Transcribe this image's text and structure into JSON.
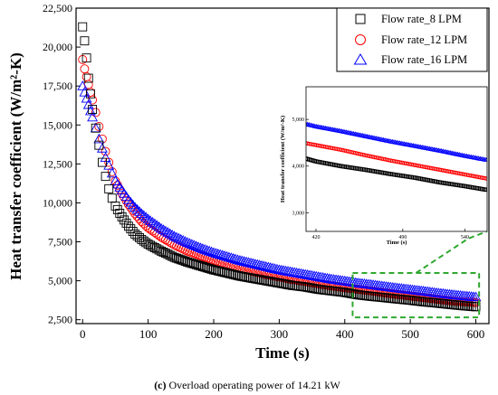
{
  "caption": {
    "letter": "(c)",
    "text": "Overload operating power of 14.21 kW"
  },
  "chart_data": {
    "type": "scatter",
    "xlabel": "Time (s)",
    "ylabel": "Heat transfer coefficient (W/m²-K)",
    "xlim": [
      -10,
      620
    ],
    "ylim": [
      2250,
      22500
    ],
    "xticks": [
      {
        "value": 0,
        "label": "0"
      },
      {
        "value": 100,
        "label": "100"
      },
      {
        "value": 200,
        "label": "200"
      },
      {
        "value": 300,
        "label": "300"
      },
      {
        "value": 400,
        "label": "400"
      },
      {
        "value": 500,
        "label": "500"
      },
      {
        "value": 600,
        "label": "600"
      }
    ],
    "yticks": [
      {
        "value": 2500,
        "label": "2,500"
      },
      {
        "value": 5000,
        "label": "5,000"
      },
      {
        "value": 7500,
        "label": "7,500"
      },
      {
        "value": 10000,
        "label": "10,000"
      },
      {
        "value": 12500,
        "label": "12,500"
      },
      {
        "value": 15000,
        "label": "15,000"
      },
      {
        "value": 17500,
        "label": "17,500"
      },
      {
        "value": 20000,
        "label": "20,000"
      },
      {
        "value": 22500,
        "label": "22,500"
      }
    ],
    "legend_position": "top-right",
    "series": [
      {
        "name": "Flow rate_8 LPM",
        "marker": "square",
        "color": "#000000",
        "points": [
          [
            0,
            21300
          ],
          [
            3,
            20400
          ],
          [
            6,
            19300
          ],
          [
            9,
            18000
          ],
          [
            12,
            17000
          ],
          [
            15,
            16000
          ],
          [
            20,
            14800
          ],
          [
            25,
            13700
          ],
          [
            30,
            12600
          ],
          [
            35,
            11700
          ],
          [
            40,
            10900
          ],
          [
            45,
            10300
          ],
          [
            50,
            9800
          ],
          [
            60,
            9100
          ],
          [
            70,
            8500
          ],
          [
            80,
            8000
          ],
          [
            90,
            7650
          ],
          [
            100,
            7350
          ],
          [
            120,
            6900
          ],
          [
            140,
            6500
          ],
          [
            160,
            6200
          ],
          [
            180,
            5950
          ],
          [
            200,
            5700
          ],
          [
            220,
            5500
          ],
          [
            240,
            5300
          ],
          [
            260,
            5150
          ],
          [
            280,
            5000
          ],
          [
            300,
            4850
          ],
          [
            320,
            4700
          ],
          [
            340,
            4600
          ],
          [
            360,
            4450
          ],
          [
            380,
            4350
          ],
          [
            400,
            4250
          ],
          [
            420,
            4100
          ],
          [
            440,
            4000
          ],
          [
            460,
            3920
          ],
          [
            480,
            3830
          ],
          [
            500,
            3750
          ],
          [
            520,
            3650
          ],
          [
            540,
            3570
          ],
          [
            560,
            3480
          ],
          [
            580,
            3400
          ],
          [
            600,
            3330
          ]
        ]
      },
      {
        "name": "Flow rate_12 LPM",
        "marker": "circle",
        "color": "#ff0000",
        "points": [
          [
            0,
            19200
          ],
          [
            3,
            18600
          ],
          [
            6,
            18100
          ],
          [
            9,
            17600
          ],
          [
            12,
            17100
          ],
          [
            15,
            16600
          ],
          [
            20,
            15800
          ],
          [
            25,
            14900
          ],
          [
            30,
            14100
          ],
          [
            35,
            13300
          ],
          [
            40,
            12600
          ],
          [
            45,
            12000
          ],
          [
            50,
            11400
          ],
          [
            60,
            10600
          ],
          [
            70,
            9900
          ],
          [
            80,
            9300
          ],
          [
            90,
            8800
          ],
          [
            100,
            8400
          ],
          [
            120,
            7800
          ],
          [
            140,
            7300
          ],
          [
            160,
            6900
          ],
          [
            180,
            6600
          ],
          [
            200,
            6300
          ],
          [
            220,
            6050
          ],
          [
            240,
            5800
          ],
          [
            260,
            5600
          ],
          [
            280,
            5400
          ],
          [
            300,
            5250
          ],
          [
            320,
            5080
          ],
          [
            340,
            4950
          ],
          [
            360,
            4800
          ],
          [
            380,
            4670
          ],
          [
            400,
            4550
          ],
          [
            420,
            4450
          ],
          [
            440,
            4350
          ],
          [
            460,
            4230
          ],
          [
            480,
            4120
          ],
          [
            500,
            4020
          ],
          [
            520,
            3920
          ],
          [
            540,
            3820
          ],
          [
            560,
            3720
          ],
          [
            580,
            3650
          ],
          [
            600,
            3600
          ]
        ]
      },
      {
        "name": "Flow rate_16 LPM",
        "marker": "triangle",
        "color": "#0000ff",
        "points": [
          [
            0,
            17500
          ],
          [
            3,
            17100
          ],
          [
            6,
            16700
          ],
          [
            9,
            16300
          ],
          [
            12,
            15900
          ],
          [
            15,
            15500
          ],
          [
            20,
            14800
          ],
          [
            25,
            14100
          ],
          [
            30,
            13500
          ],
          [
            35,
            12900
          ],
          [
            40,
            12400
          ],
          [
            45,
            11900
          ],
          [
            50,
            11400
          ],
          [
            60,
            10800
          ],
          [
            70,
            10200
          ],
          [
            80,
            9700
          ],
          [
            90,
            9300
          ],
          [
            100,
            8950
          ],
          [
            120,
            8350
          ],
          [
            140,
            7850
          ],
          [
            160,
            7450
          ],
          [
            180,
            7100
          ],
          [
            200,
            6800
          ],
          [
            220,
            6550
          ],
          [
            240,
            6300
          ],
          [
            260,
            6100
          ],
          [
            280,
            5900
          ],
          [
            300,
            5700
          ],
          [
            320,
            5550
          ],
          [
            340,
            5400
          ],
          [
            360,
            5250
          ],
          [
            380,
            5100
          ],
          [
            400,
            4980
          ],
          [
            420,
            4850
          ],
          [
            440,
            4750
          ],
          [
            460,
            4640
          ],
          [
            480,
            4530
          ],
          [
            500,
            4430
          ],
          [
            520,
            4330
          ],
          [
            540,
            4220
          ],
          [
            560,
            4120
          ],
          [
            580,
            4030
          ],
          [
            600,
            3950
          ]
        ]
      }
    ],
    "inset": {
      "xlabel": "Time (s)",
      "ylabel": "Heat transfer coefficient (W/m²-K)",
      "xlim": [
        412,
        558
      ],
      "ylim": [
        2600,
        5700
      ],
      "xticks": [
        {
          "value": 420,
          "label": "420"
        },
        {
          "value": 490,
          "label": "490"
        },
        {
          "value": 540,
          "label": "540"
        }
      ],
      "yticks": [
        {
          "value": 3000,
          "label": "3,000"
        },
        {
          "value": 4000,
          "label": "4,000"
        },
        {
          "value": 5000,
          "label": "5,000"
        }
      ],
      "note": "zoomed view of the dashed region",
      "zoom_region": {
        "x": [
          412,
          605
        ],
        "y": [
          2650,
          5500
        ]
      }
    }
  }
}
